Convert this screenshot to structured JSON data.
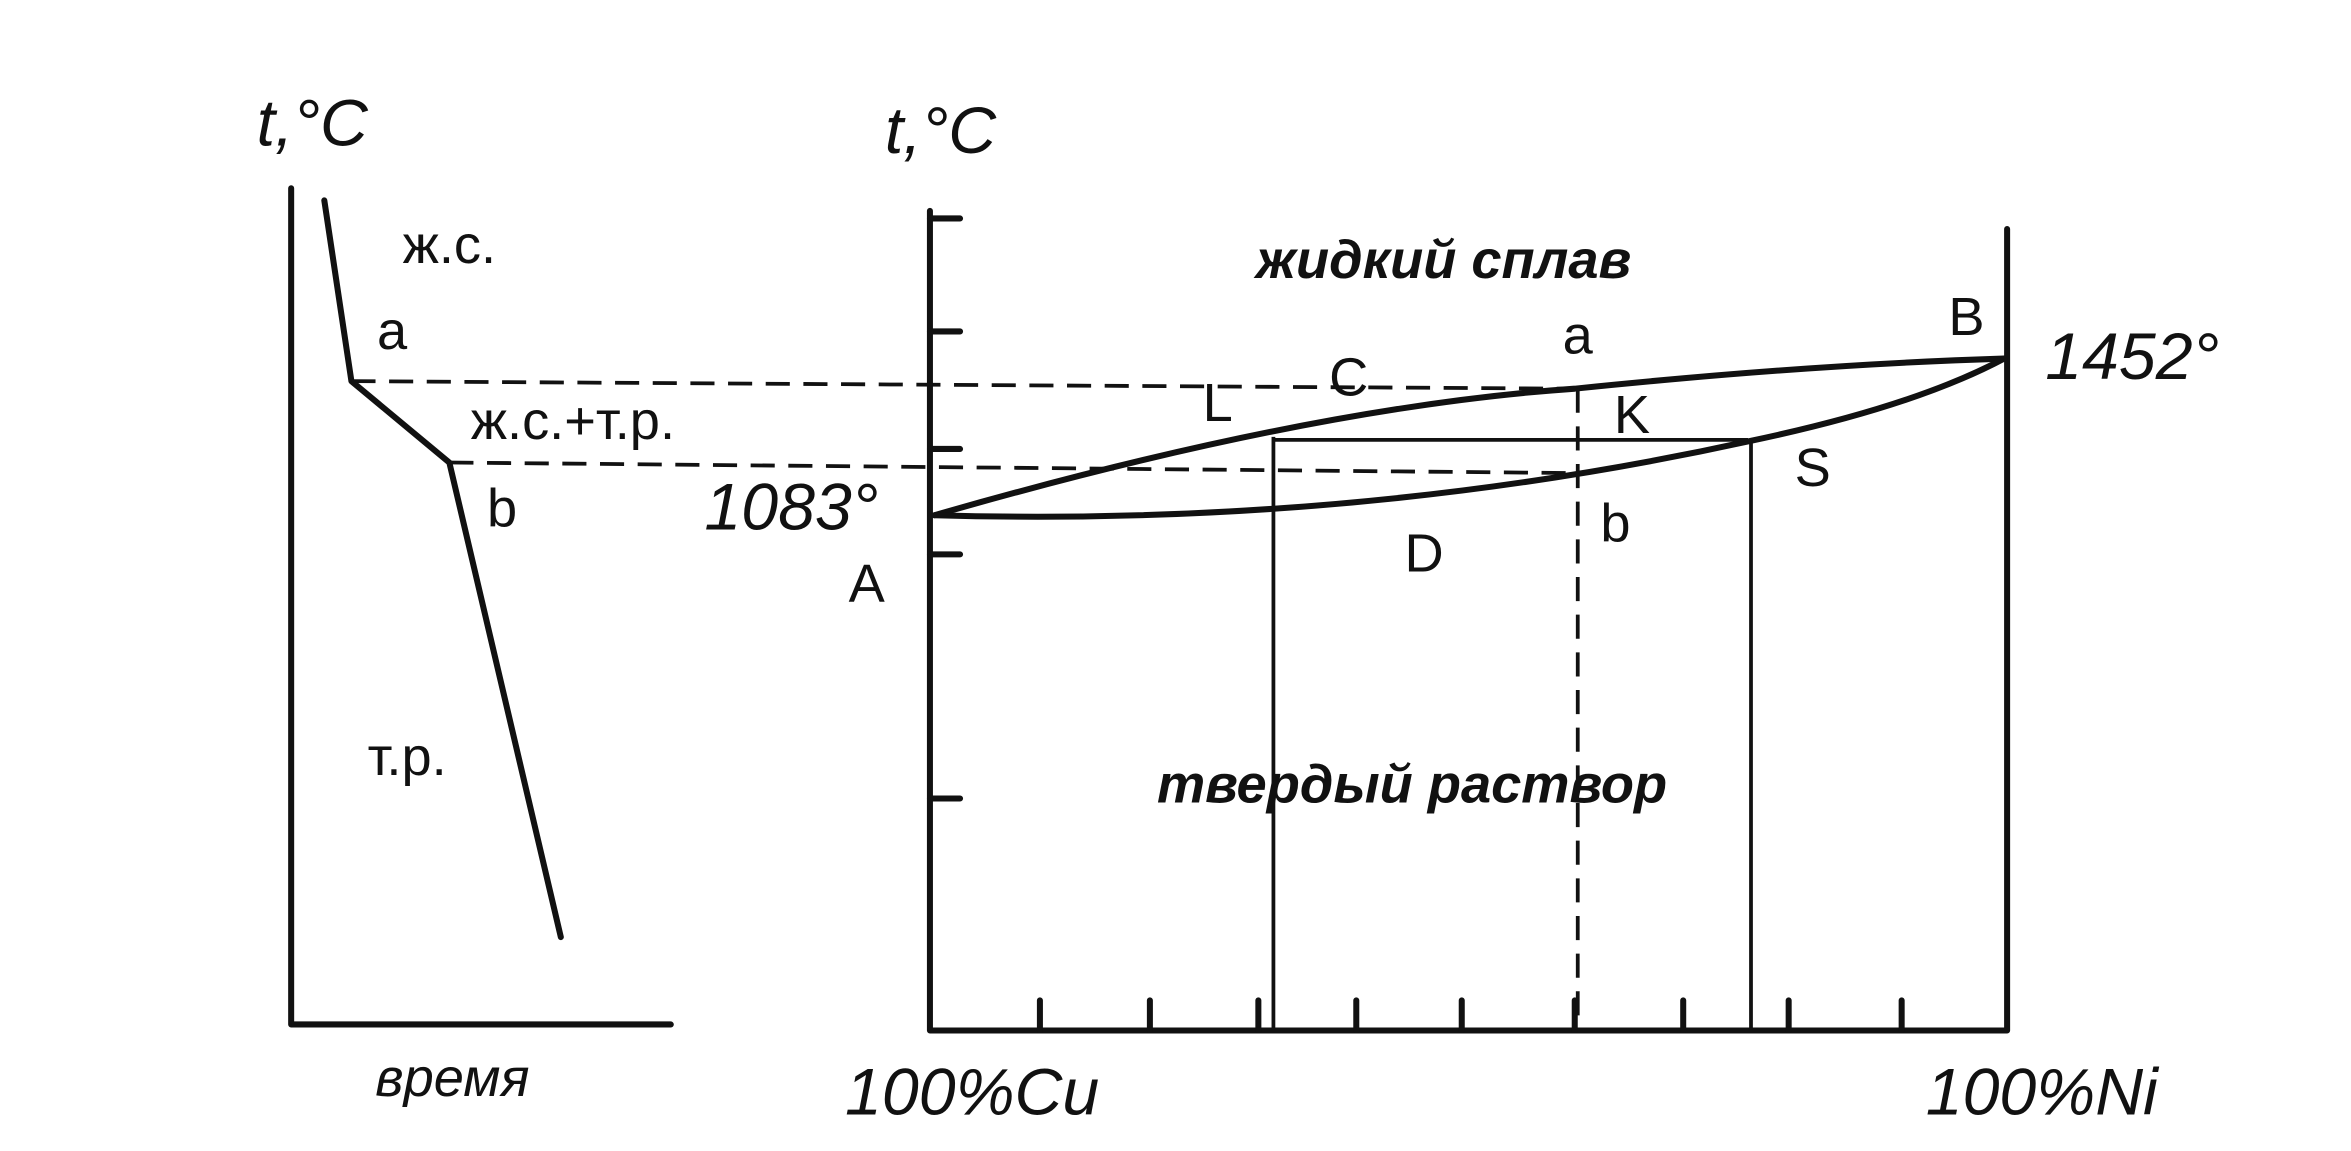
{
  "cooling_curve": {
    "axis_label": "t,°C",
    "liquid_label": "ж.с.",
    "point_a": "a",
    "mixed_label": "ж.с.+т.р.",
    "point_b": "b",
    "solid_label": "т.р.",
    "x_label": "время"
  },
  "phase_diagram": {
    "axis_label": "t,°C",
    "liquid_region": "жидкий сплав",
    "point_a": "a",
    "point_B": "B",
    "ni_melting": "1452°",
    "point_L": "L",
    "point_C": "C",
    "point_K": "K",
    "point_S": "S",
    "cu_melting": "1083°",
    "point_A": "A",
    "point_D": "D",
    "point_b": "b",
    "solid_region": "твердый раствор",
    "x_left": "100%Cu",
    "x_right": "100%Ni"
  }
}
